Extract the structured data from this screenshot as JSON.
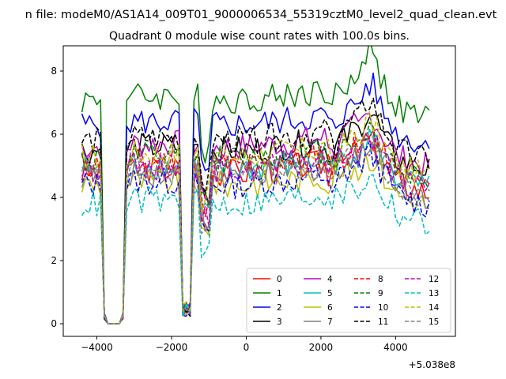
{
  "chart_data": {
    "type": "line",
    "suptitle": "n file: modeM0/AS1A14_009T01_9000006534_55319cztM0_level2_quad_clean.evt",
    "title": "Quadrant 0 module wise count rates with 100.0s bins.",
    "xlabel": "",
    "ylabel": "",
    "offset_text": "+5.038e8",
    "xlim": [
      -4900,
      5600
    ],
    "ylim": [
      -0.4,
      8.8
    ],
    "xticks": [
      -4000,
      -2000,
      0,
      2000,
      4000
    ],
    "xtick_labels": [
      "−4000",
      "−2000",
      "0",
      "2000",
      "4000"
    ],
    "yticks": [
      0,
      2,
      4,
      6,
      8
    ],
    "ytick_labels": [
      "0",
      "2",
      "4",
      "6",
      "8"
    ],
    "grid": false,
    "legend": {
      "location": "lower-right",
      "columns": 4
    },
    "x_start": -4400,
    "x_step": 100,
    "gap1": [
      -3800,
      -3300
    ],
    "gap2": [
      -1700,
      -1500
    ],
    "series": [
      {
        "name": "0",
        "color": "#ff0000",
        "dash": "solid",
        "baseline": 4.8,
        "bump": 1.0
      },
      {
        "name": "1",
        "color": "#008000",
        "dash": "solid",
        "baseline": 7.1,
        "bump": 1.6
      },
      {
        "name": "2",
        "color": "#0000ff",
        "dash": "solid",
        "baseline": 6.3,
        "bump": 1.3
      },
      {
        "name": "3",
        "color": "#000000",
        "dash": "solid",
        "baseline": 5.5,
        "bump": 1.2
      },
      {
        "name": "4",
        "color": "#bf00bf",
        "dash": "solid",
        "baseline": 5.6,
        "bump": 1.0
      },
      {
        "name": "5",
        "color": "#00bfbf",
        "dash": "solid",
        "baseline": 4.9,
        "bump": 1.0
      },
      {
        "name": "6",
        "color": "#bfbf00",
        "dash": "solid",
        "baseline": 4.4,
        "bump": 0.9
      },
      {
        "name": "7",
        "color": "#808080",
        "dash": "solid",
        "baseline": 4.7,
        "bump": 1.0
      },
      {
        "name": "8",
        "color": "#ff0000",
        "dash": "dashed",
        "baseline": 5.0,
        "bump": 0.9
      },
      {
        "name": "9",
        "color": "#008000",
        "dash": "dashed",
        "baseline": 5.2,
        "bump": 1.0
      },
      {
        "name": "10",
        "color": "#0000ff",
        "dash": "dashed",
        "baseline": 4.4,
        "bump": 1.0
      },
      {
        "name": "11",
        "color": "#000000",
        "dash": "dashed",
        "baseline": 5.8,
        "bump": 1.3
      },
      {
        "name": "12",
        "color": "#bf00bf",
        "dash": "dashed",
        "baseline": 4.9,
        "bump": 1.0
      },
      {
        "name": "13",
        "color": "#00bfbf",
        "dash": "dashed",
        "baseline": 3.8,
        "bump": 0.8
      },
      {
        "name": "14",
        "color": "#bfbf00",
        "dash": "dashed",
        "baseline": 5.3,
        "bump": 1.1
      },
      {
        "name": "15",
        "color": "#808080",
        "dash": "dashed",
        "baseline": 4.7,
        "bump": 1.0
      }
    ]
  }
}
